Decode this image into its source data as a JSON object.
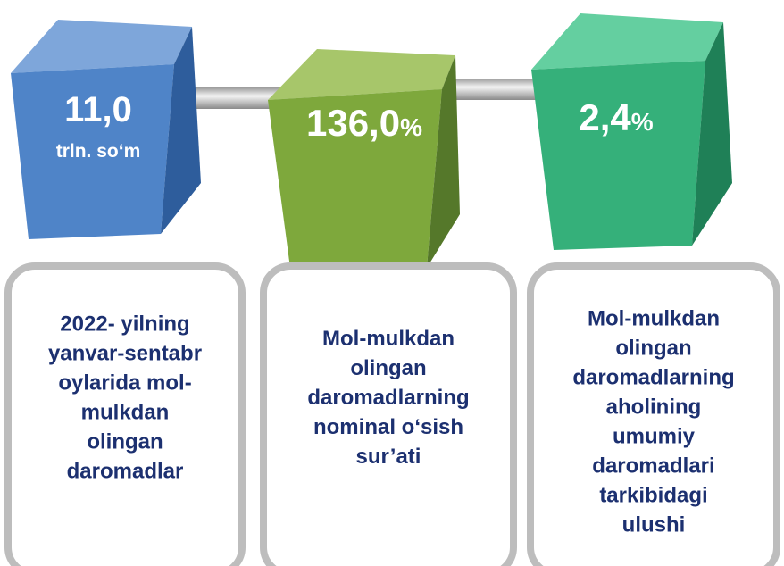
{
  "items": [
    {
      "value": "11,0",
      "unit": "trln. so‘m",
      "description": [
        "2022- yilning",
        "yanvar-sentabr",
        "oylarida mol-",
        "mulkdan",
        "olingan",
        "daromadlar"
      ]
    },
    {
      "value": "136,0",
      "unit": "%",
      "description": [
        "Mol-mulkdan",
        "olingan",
        "daromadlarning",
        "nominal o‘sish",
        "sur’ati"
      ]
    },
    {
      "value": "2,4",
      "unit": "%",
      "description": [
        "Mol-mulkdan",
        "olingan",
        "daromadlarning",
        "aholining",
        "umumiy",
        "daromadlari",
        "tarkibidagi",
        "ulushi"
      ]
    }
  ]
}
